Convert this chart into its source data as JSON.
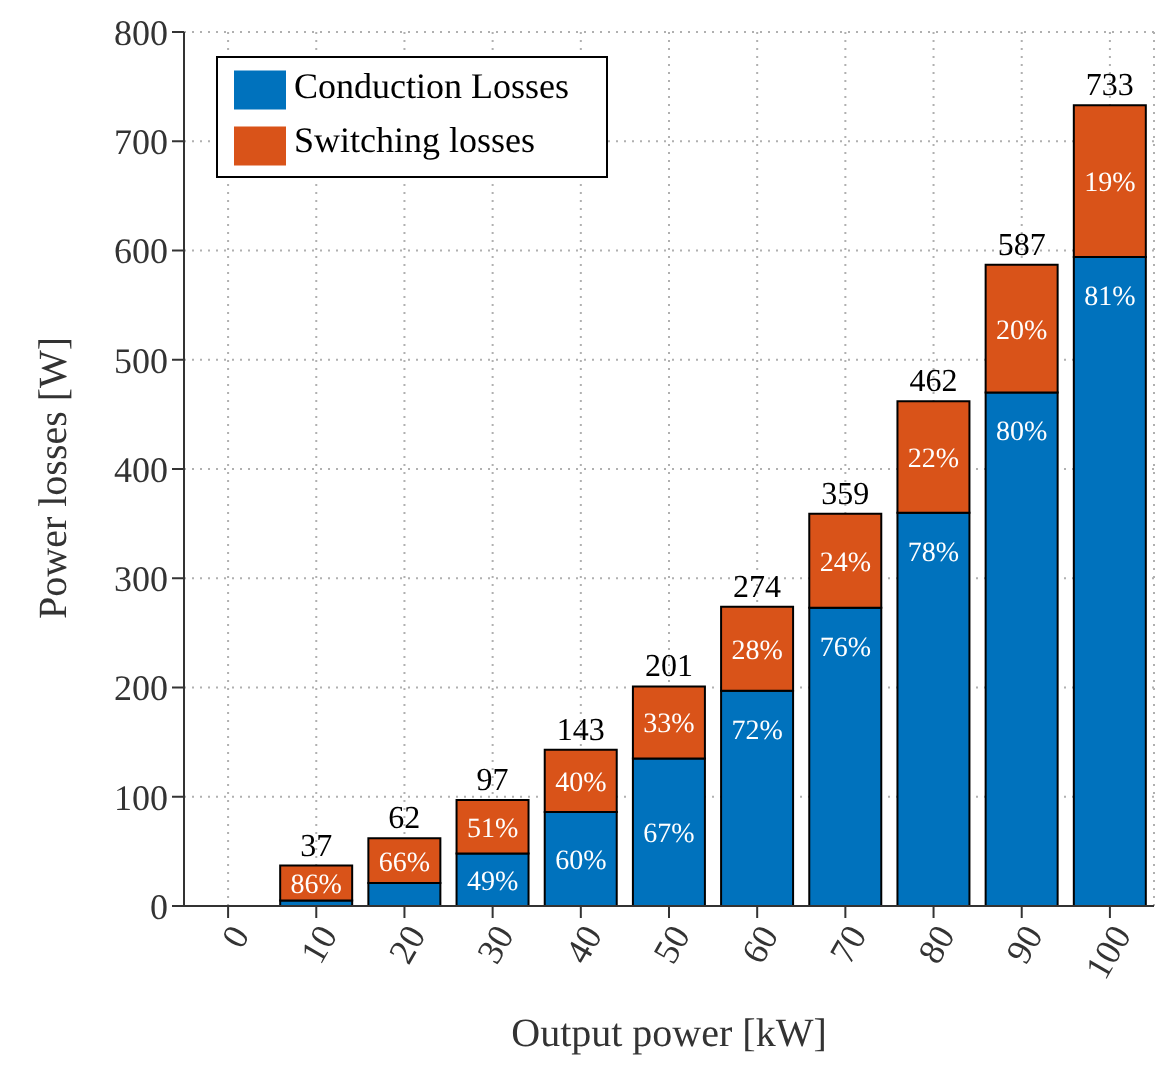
{
  "chart_data": {
    "type": "bar",
    "xlabel": "Output power [kW]",
    "ylabel": "Power losses [W]",
    "categories": [
      "0",
      "10",
      "20",
      "30",
      "40",
      "50",
      "60",
      "70",
      "80",
      "90",
      "100"
    ],
    "series": [
      {
        "name": "Conduction Losses",
        "color": "#0072bd",
        "values": [
          null,
          5,
          21,
          48,
          86,
          135,
          197,
          273,
          360,
          470,
          594
        ]
      },
      {
        "name": "Switching losses",
        "color": "#d95319",
        "values": [
          null,
          32,
          41,
          49,
          57,
          66,
          77,
          86,
          102,
          117,
          139
        ]
      }
    ],
    "stacked": true,
    "totals": [
      null,
      "37",
      "62",
      "97",
      "143",
      "201",
      "274",
      "359",
      "462",
      "587",
      "733"
    ],
    "annotations": [
      {
        "text": "49%",
        "x": "30",
        "y": 48
      },
      {
        "text": "60%",
        "x": "40",
        "y": 86
      },
      {
        "text": "67%",
        "x": "50",
        "y": 135
      },
      {
        "text": "72%",
        "x": "60",
        "y": 197
      },
      {
        "text": "76%",
        "x": "70",
        "y": 273
      },
      {
        "text": "78%",
        "x": "80",
        "y": 360
      },
      {
        "text": "80%",
        "x": "90",
        "y": 470
      },
      {
        "text": "81%",
        "x": "100",
        "y": 594
      },
      {
        "text": "86%",
        "x": "10",
        "y": 37
      },
      {
        "text": "66%",
        "x": "20",
        "y": 62
      },
      {
        "text": "51%",
        "x": "30",
        "y": 97
      },
      {
        "text": "40%",
        "x": "40",
        "y": 143
      },
      {
        "text": "33%",
        "x": "50",
        "y": 201
      },
      {
        "text": "28%",
        "x": "60",
        "y": 274
      },
      {
        "text": "24%",
        "x": "70",
        "y": 359
      },
      {
        "text": "22%",
        "x": "80",
        "y": 462
      },
      {
        "text": "20%",
        "x": "90",
        "y": 587
      },
      {
        "text": "19%",
        "x": "100",
        "y": 733
      }
    ],
    "ylim": [
      0,
      800
    ],
    "yticks": [
      0,
      100,
      200,
      300,
      400,
      500,
      600,
      700,
      800
    ],
    "grid": true,
    "legend": "top left"
  }
}
